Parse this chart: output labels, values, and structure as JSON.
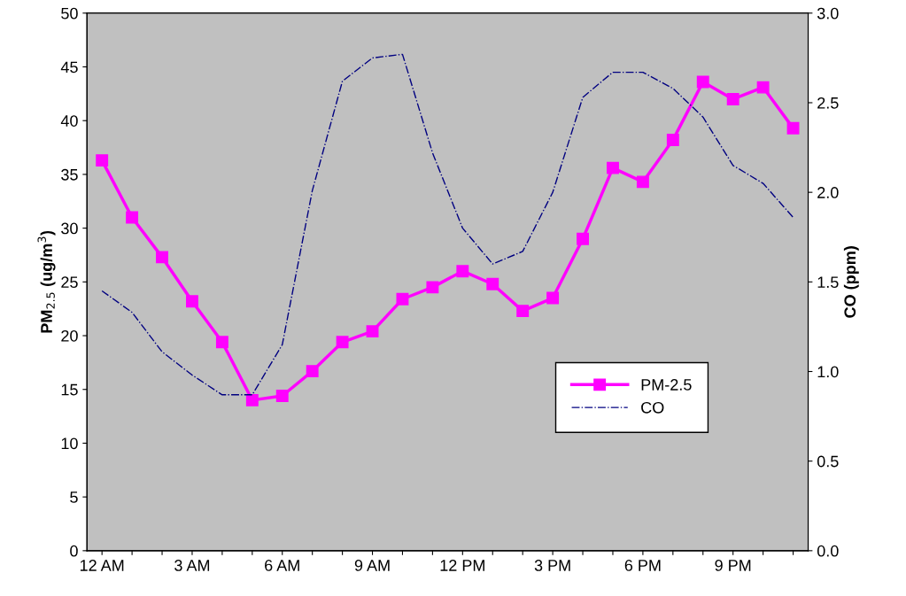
{
  "chart_data": {
    "type": "line",
    "categories": [
      "12 AM",
      null,
      null,
      "3 AM",
      null,
      null,
      "6 AM",
      null,
      null,
      "9 AM",
      null,
      null,
      "12 PM",
      null,
      null,
      "3 PM",
      null,
      null,
      "6 PM",
      null,
      null,
      "9 PM",
      null,
      null
    ],
    "series": [
      {
        "name": "PM-2.5",
        "color": "#ff00ff",
        "marker": "square",
        "line_style": "solid",
        "values": [
          36.3,
          31.0,
          27.3,
          23.2,
          19.4,
          14.0,
          14.4,
          16.7,
          19.4,
          20.4,
          23.4,
          24.5,
          26.0,
          24.8,
          22.3,
          23.5,
          29.0,
          35.6,
          34.3,
          38.2,
          43.6,
          42.0,
          43.1,
          39.3
        ]
      },
      {
        "name": "CO",
        "color": "#000080",
        "marker": "none",
        "line_style": "dashdot",
        "axis": "y2",
        "values": [
          1.45,
          1.33,
          1.11,
          0.98,
          0.87,
          0.87,
          1.15,
          2.01,
          2.62,
          2.75,
          2.77,
          2.22,
          1.8,
          1.6,
          1.67,
          2.0,
          2.53,
          2.67,
          2.67,
          2.58,
          2.42,
          2.15,
          2.05,
          1.86
        ]
      }
    ],
    "ylabel": "PM$_{2.5}$ (ug/m$^{3}$)",
    "y2label": "CO (ppm)",
    "ylim": [
      0,
      50
    ],
    "yticks": [
      0,
      5,
      10,
      15,
      20,
      25,
      30,
      35,
      40,
      45,
      50
    ],
    "y2lim": [
      0,
      3.0
    ],
    "y2ticks": [
      {
        "value": 0,
        "label": "0.0"
      },
      {
        "value": 0.5,
        "label": "0.5"
      },
      {
        "value": 1.0,
        "label": "1.0"
      },
      {
        "value": 1.5,
        "label": "1.5"
      },
      {
        "value": 2.0,
        "label": "2.0"
      },
      {
        "value": 2.5,
        "label": "2.5"
      },
      {
        "value": 3.0,
        "label": "3.0"
      }
    ],
    "grid": false,
    "legend": "right"
  }
}
